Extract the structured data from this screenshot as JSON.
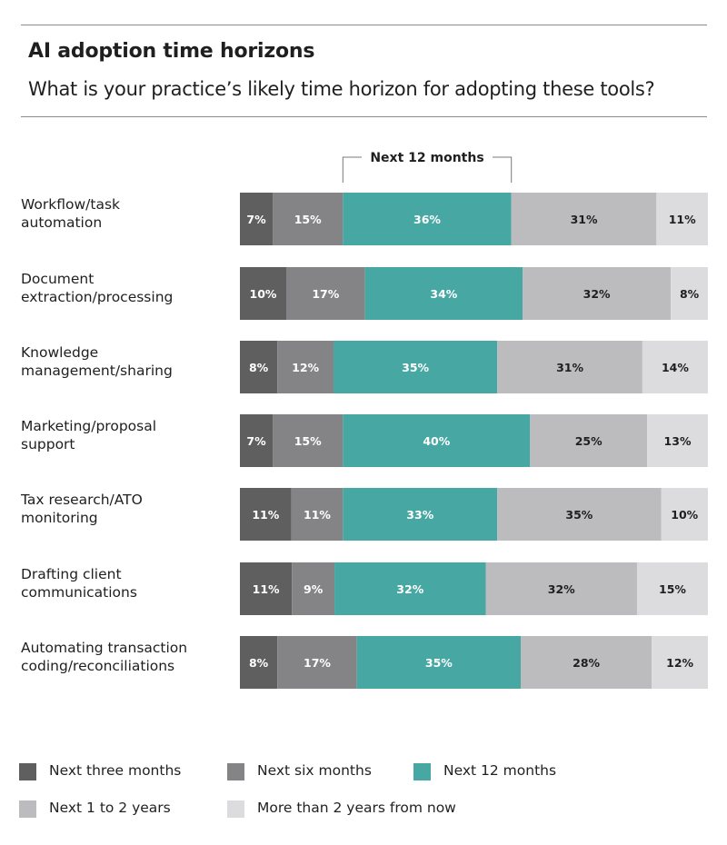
{
  "title": "AI adoption time horizons",
  "subtitle": "What is your practice’s likely time horizon for adopting these tools?",
  "chart_data": {
    "type": "bar",
    "orientation": "horizontal",
    "stacked": true,
    "bracket_label": "Next 12 months",
    "categories": [
      "Workflow/task automation",
      "Document extraction/processing",
      "Knowledge management/sharing",
      "Marketing/proposal support",
      "Tax research/ATO monitoring",
      "Drafting client communications",
      "Automating transaction coding/reconciliations"
    ],
    "category_lines": [
      [
        "Workflow/task",
        "automation"
      ],
      [
        "Document",
        "extraction/processing"
      ],
      [
        "Knowledge",
        "management/sharing"
      ],
      [
        "Marketing/proposal",
        "support"
      ],
      [
        "Tax research/ATO",
        "monitoring"
      ],
      [
        "Drafting client",
        "communications"
      ],
      [
        "Automating transaction",
        "coding/reconciliations"
      ]
    ],
    "series": [
      {
        "name": "Next three months",
        "color": "#5f5f60",
        "label_color": "#ffffff",
        "values": [
          7,
          10,
          8,
          7,
          11,
          11,
          8
        ]
      },
      {
        "name": "Next six months",
        "color": "#848486",
        "label_color": "#ffffff",
        "values": [
          15,
          17,
          12,
          15,
          11,
          9,
          17
        ]
      },
      {
        "name": "Next 12 months",
        "color": "#47a8a3",
        "label_color": "#ffffff",
        "values": [
          36,
          34,
          35,
          40,
          33,
          32,
          35
        ]
      },
      {
        "name": "Next 1 to 2 years",
        "color": "#bcbcbf",
        "label_color": "#1f1f1f",
        "values": [
          31,
          32,
          31,
          25,
          35,
          32,
          28
        ]
      },
      {
        "name": "More than 2 years from now",
        "color": "#dcdcde",
        "label_color": "#1f1f1f",
        "values": [
          11,
          8,
          14,
          13,
          10,
          15,
          12
        ]
      }
    ],
    "value_format": "{v}%",
    "legend_position": "bottom",
    "grid": false
  }
}
